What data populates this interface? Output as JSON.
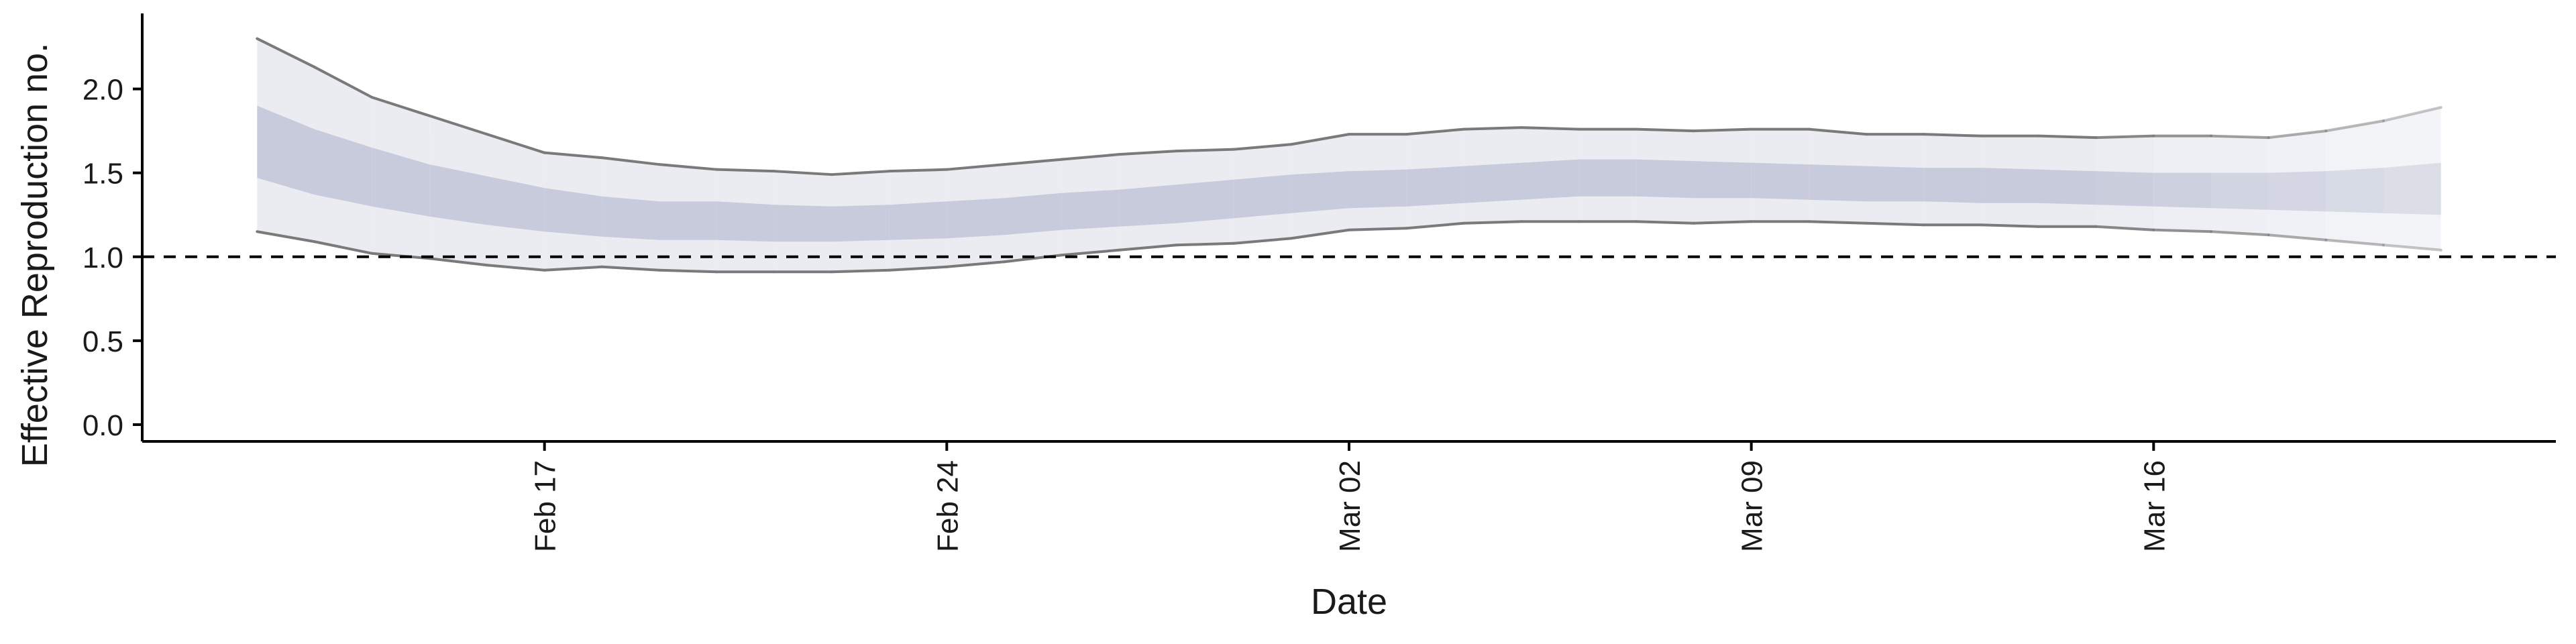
{
  "chart_data": {
    "type": "area",
    "title": "",
    "xlabel": "Date",
    "ylabel": "Effective Reproduction no.",
    "x_tick_labels": [
      "Feb 17",
      "Feb 24",
      "Mar 02",
      "Mar 09",
      "Mar 16"
    ],
    "x_tick_dates": [
      "2020-02-17",
      "2020-02-24",
      "2020-03-02",
      "2020-03-09",
      "2020-03-16"
    ],
    "y_tick_labels": [
      "0.0",
      "0.5",
      "1.0",
      "1.5",
      "2.0"
    ],
    "y_ticks": [
      0.0,
      0.5,
      1.0,
      1.5,
      2.0
    ],
    "ylim": [
      -0.1,
      2.45
    ],
    "xlim": [
      "2020-02-10",
      "2020-03-23"
    ],
    "reference_line": {
      "y": 1.0,
      "style": "dashed"
    },
    "grid": false,
    "legend": "none",
    "colors": {
      "outer_band": "#ebecf2",
      "inner_band": "#c7cbdb",
      "bound_line": "#7a7a7a",
      "axis": "#000000"
    },
    "series": [
      {
        "dates": [
          "2020-02-12",
          "2020-02-13",
          "2020-02-14",
          "2020-02-15",
          "2020-02-16",
          "2020-02-17",
          "2020-02-18",
          "2020-02-19",
          "2020-02-20",
          "2020-02-21",
          "2020-02-22",
          "2020-02-23",
          "2020-02-24",
          "2020-02-25",
          "2020-02-26",
          "2020-02-27",
          "2020-02-28",
          "2020-02-29",
          "2020-03-01",
          "2020-03-02",
          "2020-03-03",
          "2020-03-04",
          "2020-03-05",
          "2020-03-06",
          "2020-03-07",
          "2020-03-08",
          "2020-03-09",
          "2020-03-10",
          "2020-03-11",
          "2020-03-12",
          "2020-03-13",
          "2020-03-14",
          "2020-03-15",
          "2020-03-16",
          "2020-03-17",
          "2020-03-18",
          "2020-03-19",
          "2020-03-20",
          "2020-03-21"
        ],
        "upper_90": [
          2.3,
          2.13,
          1.95,
          1.84,
          1.73,
          1.62,
          1.59,
          1.55,
          1.52,
          1.51,
          1.49,
          1.51,
          1.52,
          1.55,
          1.58,
          1.61,
          1.63,
          1.64,
          1.67,
          1.73,
          1.73,
          1.76,
          1.77,
          1.76,
          1.76,
          1.75,
          1.76,
          1.76,
          1.73,
          1.73,
          1.72,
          1.72,
          1.71,
          1.72,
          1.72,
          1.71,
          1.75,
          1.81,
          1.89
        ],
        "upper_50": [
          1.9,
          1.76,
          1.65,
          1.55,
          1.48,
          1.41,
          1.36,
          1.33,
          1.33,
          1.31,
          1.3,
          1.31,
          1.33,
          1.35,
          1.38,
          1.4,
          1.43,
          1.46,
          1.49,
          1.51,
          1.52,
          1.54,
          1.56,
          1.58,
          1.58,
          1.57,
          1.56,
          1.55,
          1.54,
          1.53,
          1.53,
          1.52,
          1.51,
          1.5,
          1.5,
          1.5,
          1.51,
          1.53,
          1.56
        ],
        "lower_50": [
          1.47,
          1.37,
          1.3,
          1.24,
          1.19,
          1.15,
          1.12,
          1.1,
          1.1,
          1.09,
          1.09,
          1.1,
          1.11,
          1.13,
          1.16,
          1.18,
          1.2,
          1.23,
          1.26,
          1.29,
          1.3,
          1.32,
          1.34,
          1.36,
          1.36,
          1.35,
          1.35,
          1.34,
          1.33,
          1.33,
          1.32,
          1.32,
          1.31,
          1.3,
          1.29,
          1.28,
          1.27,
          1.26,
          1.25
        ],
        "lower_90": [
          1.15,
          1.09,
          1.02,
          0.99,
          0.95,
          0.92,
          0.94,
          0.92,
          0.91,
          0.91,
          0.91,
          0.92,
          0.94,
          0.97,
          1.01,
          1.04,
          1.07,
          1.08,
          1.11,
          1.16,
          1.17,
          1.2,
          1.21,
          1.21,
          1.21,
          1.2,
          1.21,
          1.21,
          1.2,
          1.19,
          1.19,
          1.18,
          1.18,
          1.16,
          1.15,
          1.13,
          1.1,
          1.07,
          1.04
        ]
      }
    ]
  }
}
